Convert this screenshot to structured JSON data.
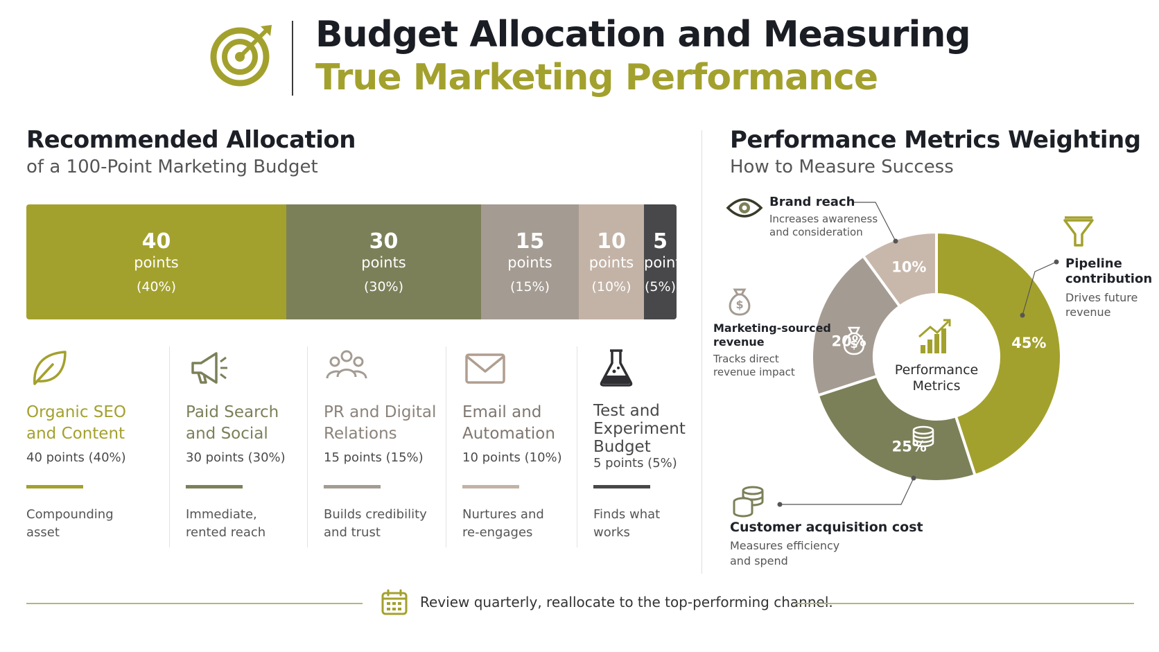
{
  "header": {
    "title_line1": "Budget Allocation and Measuring",
    "title_line2": "True Marketing Performance",
    "logo_icon": "target-arrow-icon"
  },
  "allocation": {
    "title": "Recommended Allocation",
    "subtitle": "of a 100-Point Marketing Budget",
    "unit_label": "points"
  },
  "metrics": {
    "title": "Performance Metrics Weighting",
    "subtitle": "How to Measure Success",
    "center_line1": "Performance",
    "center_line2": "Metrics"
  },
  "chart_data": [
    {
      "type": "bar",
      "stacked": true,
      "orientation": "horizontal",
      "total": 100,
      "categories": [
        "Organic SEO and Content",
        "Paid Search and Social",
        "PR and Digital Relations",
        "Email and Automation",
        "Test and Experiment Budget"
      ],
      "values": [
        40,
        30,
        15,
        10,
        5
      ],
      "value_labels": [
        "40",
        "30",
        "15",
        "10",
        "5"
      ],
      "percent_labels": [
        "(40%)",
        "(30%)",
        "(15%)",
        "(10%)",
        "(5%)"
      ],
      "colors": [
        "#a3a12d",
        "#7c8059",
        "#a49b92",
        "#c3b3a6",
        "#48484a"
      ]
    },
    {
      "type": "pie",
      "donut": true,
      "categories": [
        "Pipeline contribution",
        "Customer acquisition cost",
        "Marketing-sourced revenue",
        "Brand reach"
      ],
      "values": [
        45,
        25,
        20,
        10
      ],
      "value_labels": [
        "45%",
        "25%",
        "20%",
        "10%"
      ],
      "colors": [
        "#a3a12d",
        "#7c8059",
        "#a49b92",
        "#c8b8ab"
      ],
      "icons": [
        "funnel-icon",
        "coins-icon",
        "money-bag-icon",
        "eye-icon"
      ]
    }
  ],
  "channels": [
    {
      "name_lines": [
        "Organic SEO",
        "and Content"
      ],
      "points": "40 points (40%)",
      "desc_lines": [
        "Compounding",
        "asset"
      ],
      "icon": "leaf-icon",
      "color": "#a3a12d"
    },
    {
      "name_lines": [
        "Paid Search",
        "and Social"
      ],
      "points": "30 points (30%)",
      "desc_lines": [
        "Immediate,",
        "rented reach"
      ],
      "icon": "megaphone-icon",
      "color": "#7c8059"
    },
    {
      "name_lines": [
        "PR and Digital",
        "Relations"
      ],
      "points": "15 points (15%)",
      "desc_lines": [
        "Builds credibility",
        "and trust"
      ],
      "icon": "people-icon",
      "color": "#a49b92"
    },
    {
      "name_lines": [
        "Email and",
        "Automation"
      ],
      "points": "10 points (10%)",
      "desc_lines": [
        "Nurtures and",
        "re-engages"
      ],
      "icon": "envelope-icon",
      "color": "#c3b3a6"
    },
    {
      "name_lines": [
        "Test and",
        "Experiment",
        "Budget"
      ],
      "points": "5 points (5%)",
      "desc_lines": [
        "Finds what",
        "works"
      ],
      "icon": "flask-icon",
      "color": "#48484a"
    }
  ],
  "metric_labels": {
    "brand_reach": {
      "title": "Brand reach",
      "desc_lines": [
        "Increases awareness",
        "and consideration"
      ]
    },
    "pipeline": {
      "title_lines": [
        "Pipeline",
        "contribution"
      ],
      "desc_lines": [
        "Drives future",
        "revenue"
      ]
    },
    "revenue": {
      "title_lines": [
        "Marketing-sourced",
        "revenue"
      ],
      "desc_lines": [
        "Tracks direct",
        "revenue impact"
      ]
    },
    "cac": {
      "title": "Customer acquisition cost",
      "desc_lines": [
        "Measures efficiency",
        "and spend"
      ]
    }
  },
  "footer": {
    "text": "Review quarterly, reallocate to the top-performing channel.",
    "icon": "calendar-icon"
  },
  "colors": {
    "accent": "#a3a12d",
    "dark": "#1c1f26"
  }
}
